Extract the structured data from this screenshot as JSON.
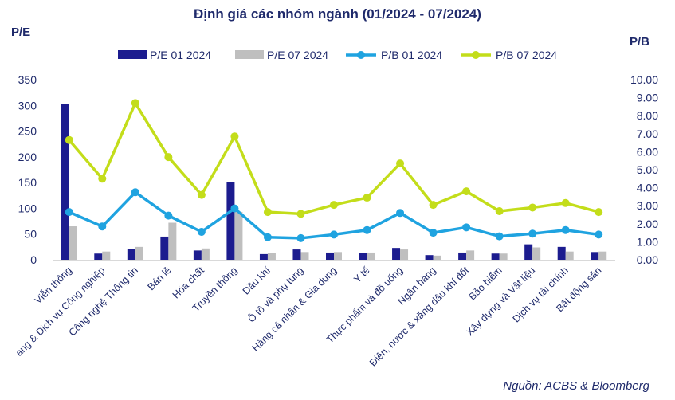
{
  "title": "Định giá các nhóm ngành (01/2024 - 07/2024)",
  "source": "Nguồn:  ACBS & Bloomberg",
  "colors": {
    "pe_jan": "#1c1c8f",
    "pe_jul": "#bfbfbf",
    "pb_jan": "#1fa3e0",
    "pb_jul": "#c3dd1a",
    "text": "#1f2a6b"
  },
  "chart_data": {
    "type": "bar+line",
    "title": "Định giá các nhóm ngành (01/2024 - 07/2024)",
    "ylabel_left": "P/E",
    "ylabel_right": "P/B",
    "ylim_left": [
      0,
      350
    ],
    "ylim_right": [
      0,
      10
    ],
    "yticks_left": [
      "0",
      "50",
      "100",
      "150",
      "200",
      "250",
      "300",
      "350"
    ],
    "yticks_right": [
      "0.00",
      "1.00",
      "2.00",
      "3.00",
      "4.00",
      "5.00",
      "6.00",
      "7.00",
      "8.00",
      "9.00",
      "10.00"
    ],
    "legend_placement": "top",
    "categories": [
      "Viễn thông",
      "ang & Dịch vụ Công nghiệp",
      "Công nghệ Thông tin",
      "Bán lẻ",
      "Hóa chất",
      "Truyền thông",
      "Dầu khí",
      "Ô tô và phụ tùng",
      "Hàng cá nhân & Gia dụng",
      "Y tế",
      "Thực phẩm và đồ uống",
      "Ngân hàng",
      "Điện, nước & xăng dầu khí đốt",
      "Bảo hiểm",
      "Xây dựng và Vật liệu",
      "Dịch vụ tài chính",
      "Bất động sản"
    ],
    "bar_series": [
      {
        "name": "P/E 01 2024",
        "axis": "left",
        "values": [
          303,
          12,
          21,
          45,
          18,
          151,
          11,
          20,
          14,
          13,
          23,
          9,
          14,
          12,
          30,
          25,
          15
        ]
      },
      {
        "name": "P/E 07 2024",
        "axis": "left",
        "values": [
          65,
          16,
          25,
          72,
          22,
          93,
          13,
          15,
          15,
          14,
          20,
          8,
          18,
          12,
          24,
          16,
          16
        ]
      }
    ],
    "line_series": [
      {
        "name": "P/B 01 2024",
        "axis": "right",
        "values": [
          2.65,
          1.85,
          3.75,
          2.45,
          1.55,
          2.85,
          1.25,
          1.2,
          1.4,
          1.65,
          2.6,
          1.5,
          1.8,
          1.3,
          1.45,
          1.65,
          1.4
        ]
      },
      {
        "name": "P/B 07 2024",
        "axis": "right",
        "values": [
          6.65,
          4.5,
          8.7,
          5.7,
          3.6,
          6.85,
          2.65,
          2.55,
          3.05,
          3.45,
          5.35,
          3.05,
          3.8,
          2.7,
          2.9,
          3.15,
          2.65
        ]
      }
    ]
  }
}
